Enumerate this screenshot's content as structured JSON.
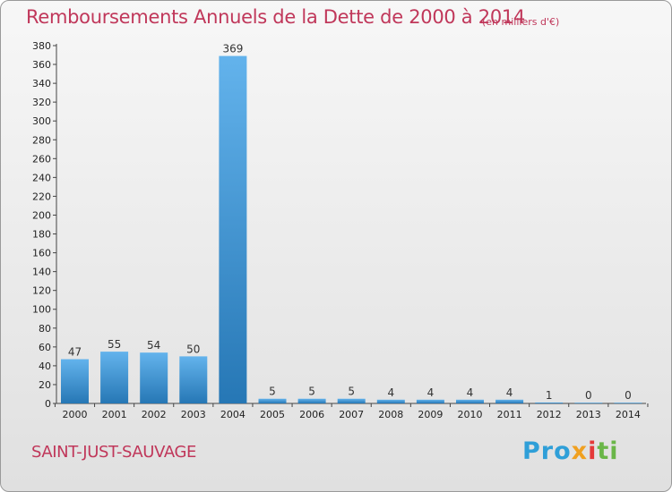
{
  "chart_data": {
    "type": "bar",
    "title": "Remboursements Annuels de la Dette de 2000 à 2014",
    "subtitle": "(en milliers d'€)",
    "categories": [
      "2000",
      "2001",
      "2002",
      "2003",
      "2004",
      "2005",
      "2006",
      "2007",
      "2008",
      "2009",
      "2010",
      "2011",
      "2012",
      "2013",
      "2014"
    ],
    "values": [
      47,
      55,
      54,
      50,
      369,
      5,
      5,
      5,
      4,
      4,
      4,
      4,
      1,
      0,
      0
    ],
    "ylim": [
      0,
      380
    ],
    "yticks": [
      0,
      20,
      40,
      60,
      80,
      100,
      120,
      140,
      160,
      180,
      200,
      220,
      240,
      260,
      280,
      300,
      320,
      340,
      360,
      380
    ],
    "xlabel": "",
    "ylabel": "",
    "grid": false
  },
  "footer": {
    "commune": "SAINT-JUST-SAUVAGE",
    "logo": [
      "Pro",
      "x",
      "i",
      "ti"
    ]
  },
  "colors": {
    "title": "#c0375a",
    "bar_light": "#63b3ec",
    "bar_dark": "#2677b5"
  }
}
